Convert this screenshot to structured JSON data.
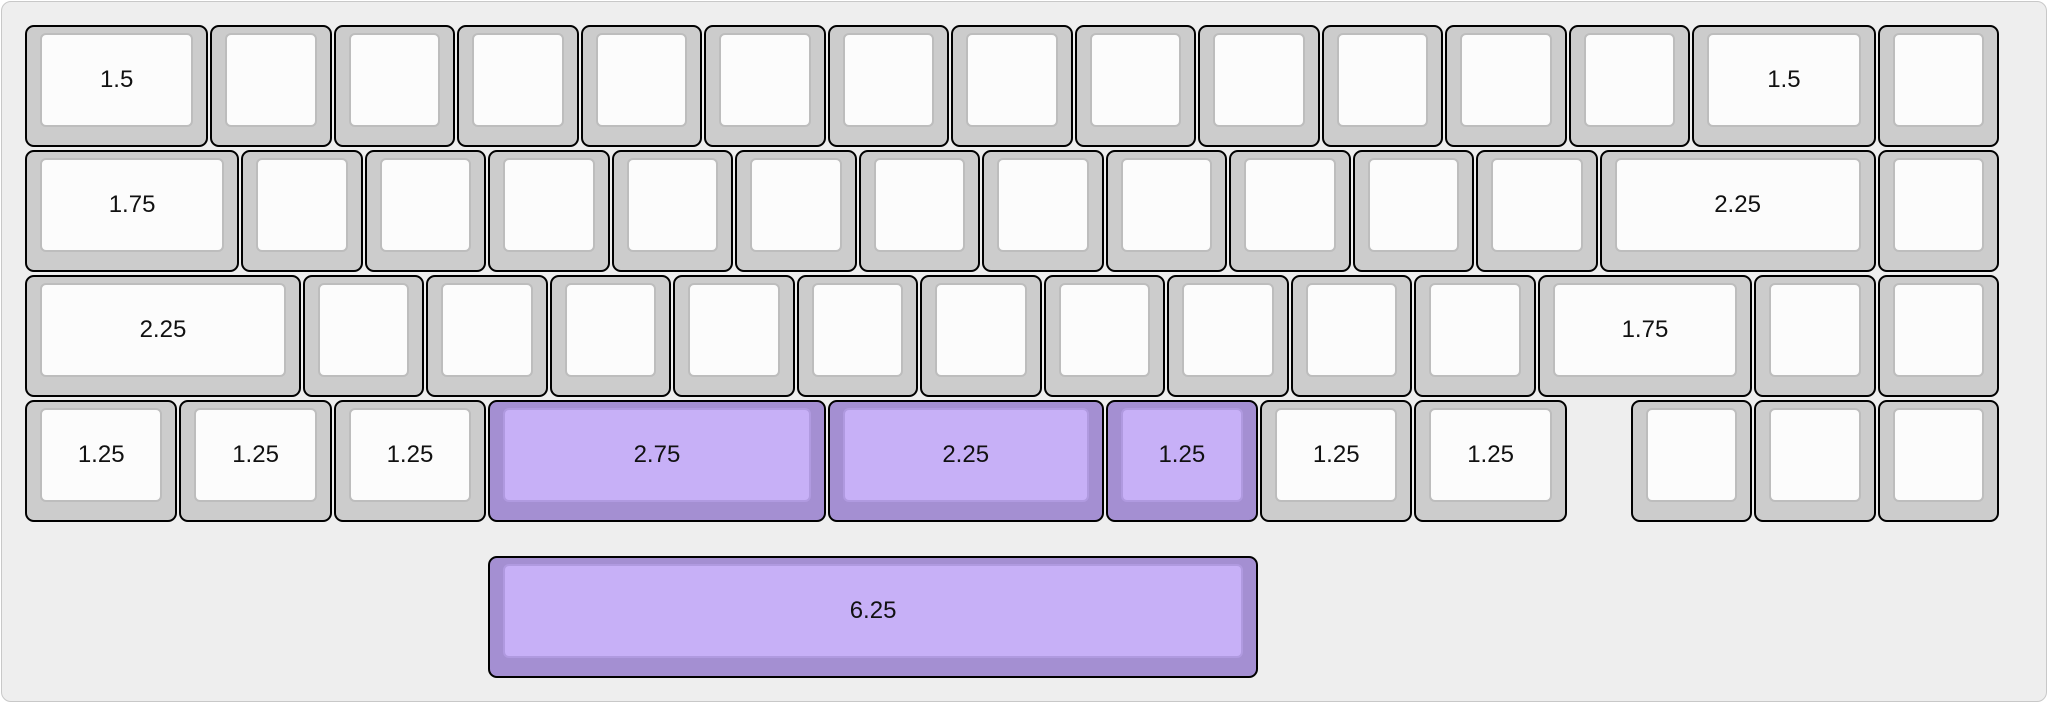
{
  "colors": {
    "base_outer": "#cccccc",
    "base_top": "#fcfcfc",
    "accent_outer": "#a48fd2",
    "accent_top": "#c7b0f7",
    "background": "#eeeeee"
  },
  "rows": [
    {
      "keys": [
        {
          "w": 1.5,
          "label": "1.5"
        },
        {
          "w": 1,
          "label": ""
        },
        {
          "w": 1,
          "label": ""
        },
        {
          "w": 1,
          "label": ""
        },
        {
          "w": 1,
          "label": ""
        },
        {
          "w": 1,
          "label": ""
        },
        {
          "w": 1,
          "label": ""
        },
        {
          "w": 1,
          "label": ""
        },
        {
          "w": 1,
          "label": ""
        },
        {
          "w": 1,
          "label": ""
        },
        {
          "w": 1,
          "label": ""
        },
        {
          "w": 1,
          "label": ""
        },
        {
          "w": 1,
          "label": ""
        },
        {
          "w": 1.5,
          "label": "1.5"
        },
        {
          "w": 1,
          "label": ""
        }
      ]
    },
    {
      "keys": [
        {
          "w": 1.75,
          "label": "1.75"
        },
        {
          "w": 1,
          "label": ""
        },
        {
          "w": 1,
          "label": ""
        },
        {
          "w": 1,
          "label": ""
        },
        {
          "w": 1,
          "label": ""
        },
        {
          "w": 1,
          "label": ""
        },
        {
          "w": 1,
          "label": ""
        },
        {
          "w": 1,
          "label": ""
        },
        {
          "w": 1,
          "label": ""
        },
        {
          "w": 1,
          "label": ""
        },
        {
          "w": 1,
          "label": ""
        },
        {
          "w": 1,
          "label": ""
        },
        {
          "w": 2.25,
          "label": "2.25"
        },
        {
          "w": 1,
          "label": ""
        }
      ]
    },
    {
      "keys": [
        {
          "w": 2.25,
          "label": "2.25"
        },
        {
          "w": 1,
          "label": ""
        },
        {
          "w": 1,
          "label": ""
        },
        {
          "w": 1,
          "label": ""
        },
        {
          "w": 1,
          "label": ""
        },
        {
          "w": 1,
          "label": ""
        },
        {
          "w": 1,
          "label": ""
        },
        {
          "w": 1,
          "label": ""
        },
        {
          "w": 1,
          "label": ""
        },
        {
          "w": 1,
          "label": ""
        },
        {
          "w": 1,
          "label": ""
        },
        {
          "w": 1.75,
          "label": "1.75"
        },
        {
          "w": 1,
          "label": ""
        },
        {
          "w": 1,
          "label": ""
        }
      ]
    },
    {
      "keys": [
        {
          "w": 1.25,
          "label": "1.25"
        },
        {
          "w": 1.25,
          "label": "1.25"
        },
        {
          "w": 1.25,
          "label": "1.25"
        },
        {
          "w": 2.75,
          "label": "2.75",
          "accent": true
        },
        {
          "w": 2.25,
          "label": "2.25",
          "accent": true
        },
        {
          "w": 1.25,
          "label": "1.25",
          "accent": true
        },
        {
          "w": 1.25,
          "label": "1.25"
        },
        {
          "w": 1.25,
          "label": "1.25"
        },
        {
          "w": 1,
          "label": ""
        },
        {
          "w": 1,
          "label": ""
        },
        {
          "w": 1,
          "label": ""
        }
      ]
    },
    {
      "keys": [
        {
          "w": 6.25,
          "label": "6.25",
          "accent": true
        }
      ]
    }
  ]
}
